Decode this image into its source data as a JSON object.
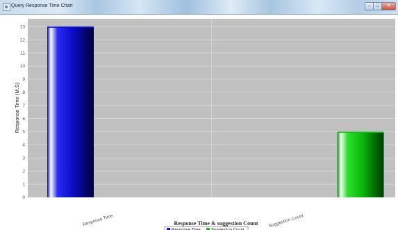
{
  "window": {
    "title": "Query Response Time Chart",
    "minimize_glyph": "–",
    "maximize_glyph": "□",
    "close_glyph": "✕"
  },
  "chart_data": {
    "type": "bar",
    "title": "Response Time & suggestion Count",
    "xlabel": "",
    "ylabel": "Response Time (M.S)",
    "ylim": [
      0,
      13.6
    ],
    "yticks": [
      0,
      1,
      2,
      3,
      4,
      5,
      6,
      7,
      8,
      9,
      10,
      11,
      12,
      13
    ],
    "grid": true,
    "legend_position": "bottom-center",
    "categories": [
      "Response Time",
      "Suggestion Count"
    ],
    "series": [
      {
        "name": "Response Time",
        "values": [
          13,
          null
        ],
        "color": "#1010d8"
      },
      {
        "name": "Suggestion Count",
        "values": [
          null,
          5
        ],
        "color": "#10c010"
      }
    ]
  }
}
